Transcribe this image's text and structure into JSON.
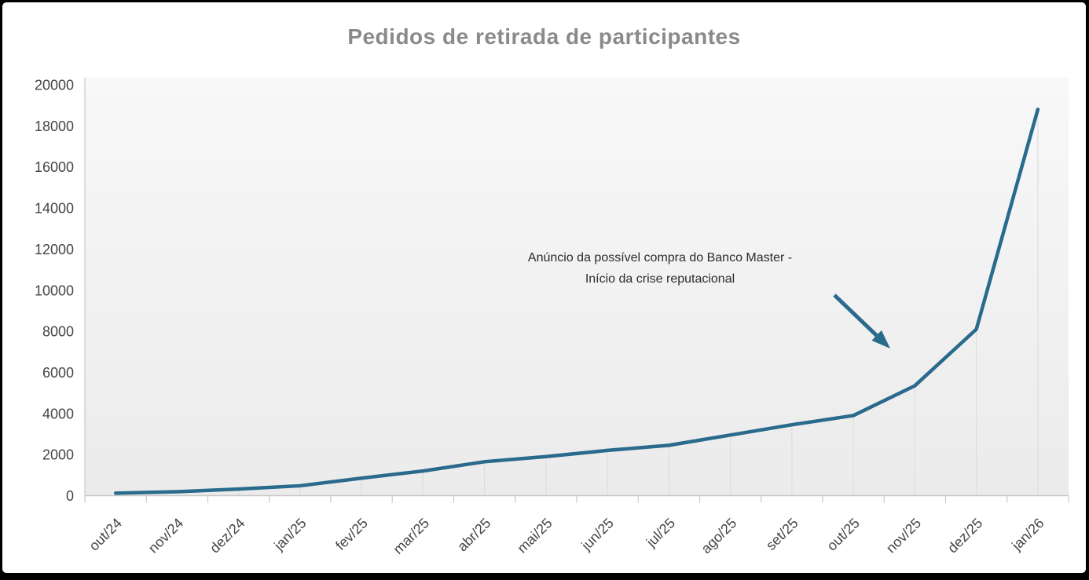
{
  "colors": {
    "line": "#2a6a8c",
    "title_text": "#8a8a8a",
    "axis_text": "#454545",
    "annotation_text": "#2b2b2b",
    "axis_line": "#c9c9c9",
    "tick_mark": "#c9c9c9",
    "drop_line": "#dedede",
    "plot_bg_top": "#f8f8f8",
    "plot_bg_bottom": "#ebebeb",
    "frame": "#000000",
    "canvas": "#ffffff"
  },
  "chart_data": {
    "type": "line",
    "title": "Pedidos de retirada de participantes",
    "categories": [
      "out/24",
      "nov/24",
      "dez/24",
      "jan/25",
      "fev/25",
      "mar/25",
      "abr/25",
      "mai/25",
      "jun/25",
      "jul/25",
      "ago/25",
      "set/25",
      "out/25",
      "nov/25",
      "dez/25",
      "jan/26"
    ],
    "values": [
      120,
      190,
      320,
      480,
      850,
      1200,
      1650,
      1900,
      2200,
      2450,
      2950,
      3450,
      3900,
      5350,
      8100,
      18800
    ],
    "xlabel": "",
    "ylabel": "",
    "ylim": [
      0,
      20000
    ],
    "ytick_step": 2000,
    "x_label_rotation_deg": -45,
    "grid": "vertical-drop-lines",
    "legend": "none",
    "annotation": {
      "line1": "Anúncio da possível compra do Banco Master -",
      "line2": "Início da crise reputacional"
    }
  }
}
